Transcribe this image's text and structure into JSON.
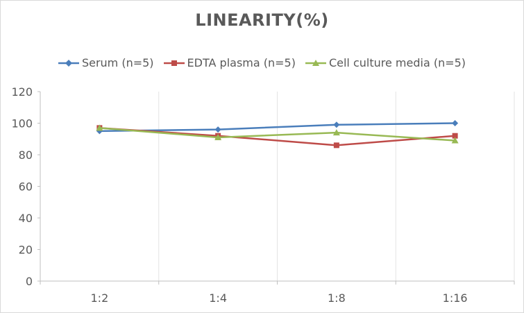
{
  "title": "LINEARITY(%)",
  "chart_data": {
    "type": "line",
    "title": "LINEARITY(%)",
    "xlabel": "",
    "ylabel": "",
    "categories": [
      "1:2",
      "1:4",
      "1:8",
      "1:16"
    ],
    "ylim": [
      0,
      120
    ],
    "yticks": [
      0,
      20,
      40,
      60,
      80,
      100,
      120
    ],
    "grid": "vertical",
    "legend_position": "top",
    "series": [
      {
        "name": "Serum (n=5)",
        "values": [
          95,
          96,
          99,
          100
        ],
        "color": "#4a7ebb",
        "marker": "diamond"
      },
      {
        "name": "EDTA plasma (n=5)",
        "values": [
          97,
          92,
          86,
          92
        ],
        "color": "#be4b48",
        "marker": "square"
      },
      {
        "name": "Cell culture media (n=5)",
        "values": [
          97,
          91,
          94,
          89
        ],
        "color": "#98b954",
        "marker": "triangle"
      }
    ]
  }
}
